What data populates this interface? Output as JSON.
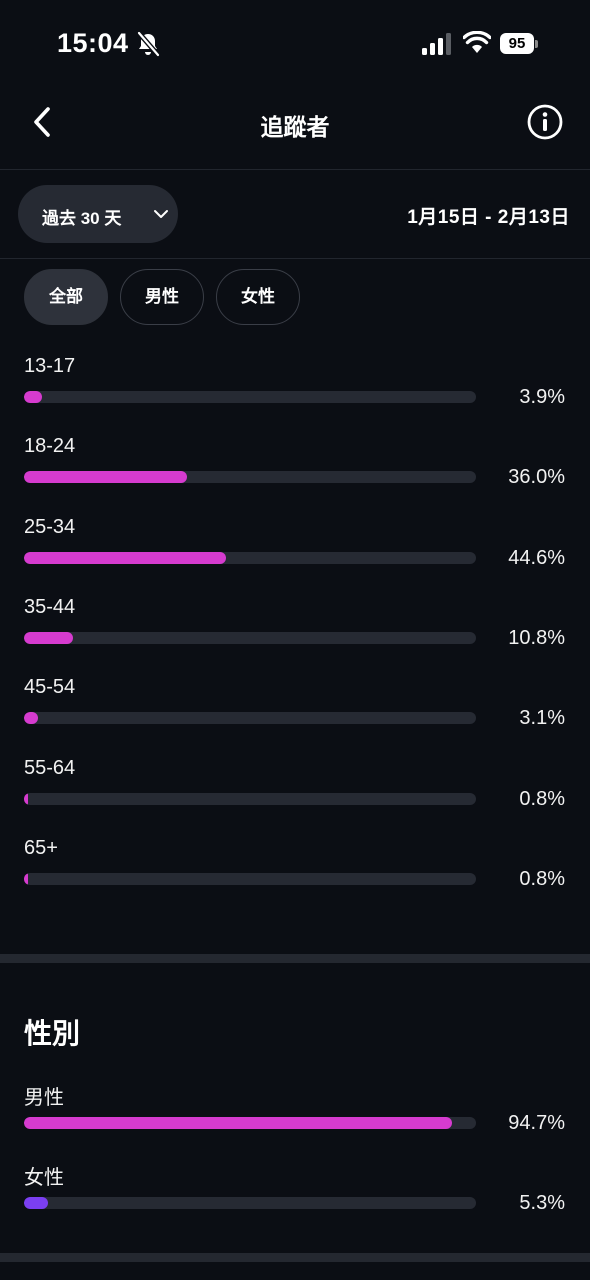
{
  "status_bar": {
    "time": "15:04",
    "battery": "95"
  },
  "header": {
    "title": "追蹤者"
  },
  "range": {
    "selected": "過去 30 天",
    "dates": "1月15日 - 2月13日"
  },
  "filters": [
    {
      "label": "全部",
      "active": true
    },
    {
      "label": "男性",
      "active": false
    },
    {
      "label": "女性",
      "active": false
    }
  ],
  "age_groups": [
    {
      "label": "13-17",
      "value": 3.9,
      "display": "3.9%"
    },
    {
      "label": "18-24",
      "value": 36.0,
      "display": "36.0%"
    },
    {
      "label": "25-34",
      "value": 44.6,
      "display": "44.6%"
    },
    {
      "label": "35-44",
      "value": 10.8,
      "display": "10.8%"
    },
    {
      "label": "45-54",
      "value": 3.1,
      "display": "3.1%"
    },
    {
      "label": "55-64",
      "value": 0.8,
      "display": "0.8%"
    },
    {
      "label": "65+",
      "value": 0.8,
      "display": "0.8%"
    }
  ],
  "gender": {
    "title": "性別",
    "items": [
      {
        "label": "男性",
        "value": 94.7,
        "display": "94.7%",
        "color": "#d63bcf"
      },
      {
        "label": "女性",
        "value": 5.3,
        "display": "5.3%",
        "color": "#7b3ff2"
      }
    ]
  },
  "colors": {
    "accent": "#d63bcf",
    "secondary": "#7b3ff2",
    "track": "#262a33",
    "background": "#0b0e14"
  }
}
